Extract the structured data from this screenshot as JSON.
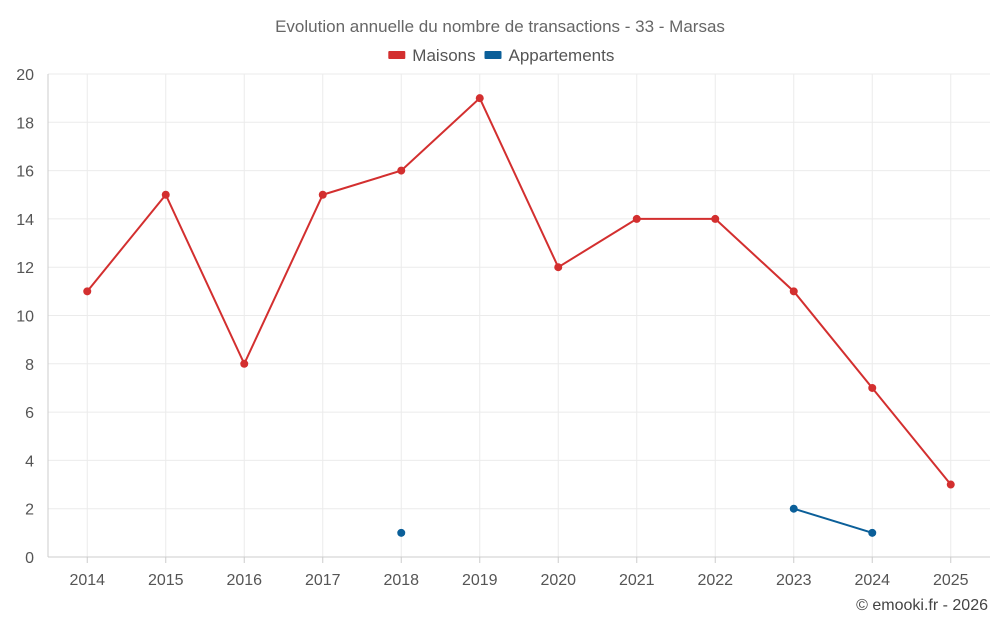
{
  "chart_data": {
    "type": "line",
    "title": "Evolution annuelle du nombre de transactions - 33 - Marsas",
    "categories": [
      "2014",
      "2015",
      "2016",
      "2017",
      "2018",
      "2019",
      "2020",
      "2021",
      "2022",
      "2023",
      "2024",
      "2025"
    ],
    "ylim": [
      0,
      20
    ],
    "yticks": [
      0,
      2,
      4,
      6,
      8,
      10,
      12,
      14,
      16,
      18,
      20
    ],
    "grid": true,
    "legend_position": "top-center",
    "series": [
      {
        "name": "Maisons",
        "color": "#d32f2f",
        "values": [
          11,
          15,
          8,
          15,
          16,
          19,
          12,
          14,
          14,
          11,
          7,
          3
        ]
      },
      {
        "name": "Appartements",
        "color": "#0b5f99",
        "values": [
          null,
          null,
          null,
          null,
          1,
          null,
          null,
          null,
          null,
          2,
          1,
          null
        ]
      }
    ],
    "credit": "© emooki.fr - 2026"
  }
}
